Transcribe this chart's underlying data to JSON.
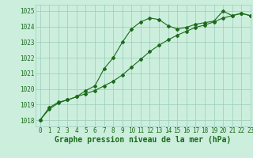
{
  "line1_x": [
    0,
    1,
    2,
    3,
    4,
    5,
    6,
    7,
    8,
    9,
    10,
    11,
    12,
    13,
    14,
    15,
    16,
    17,
    18,
    19,
    20,
    21,
    22,
    23
  ],
  "line1_y": [
    1018.0,
    1018.7,
    1019.1,
    1019.3,
    1019.5,
    1019.9,
    1020.2,
    1021.3,
    1022.0,
    1023.0,
    1023.85,
    1024.3,
    1024.55,
    1024.45,
    1024.05,
    1023.85,
    1023.95,
    1024.15,
    1024.25,
    1024.35,
    1025.0,
    1024.7,
    1024.85,
    1024.7
  ],
  "line2_x": [
    0,
    1,
    2,
    3,
    4,
    5,
    6,
    7,
    8,
    9,
    10,
    11,
    12,
    13,
    14,
    15,
    16,
    17,
    18,
    19,
    20,
    21,
    22,
    23
  ],
  "line2_y": [
    1018.0,
    1018.8,
    1019.15,
    1019.3,
    1019.5,
    1019.7,
    1019.9,
    1020.2,
    1020.5,
    1020.9,
    1021.4,
    1021.9,
    1022.4,
    1022.8,
    1023.15,
    1023.45,
    1023.7,
    1023.95,
    1024.1,
    1024.3,
    1024.55,
    1024.7,
    1024.85,
    1024.7
  ],
  "line_color": "#1a6b1a",
  "bg_color": "#cceedd",
  "grid_color": "#99ccbb",
  "xlim": [
    -0.5,
    23
  ],
  "ylim": [
    1017.6,
    1025.4
  ],
  "yticks": [
    1018,
    1019,
    1020,
    1021,
    1022,
    1023,
    1024,
    1025
  ],
  "xticks": [
    0,
    1,
    2,
    3,
    4,
    5,
    6,
    7,
    8,
    9,
    10,
    11,
    12,
    13,
    14,
    15,
    16,
    17,
    18,
    19,
    20,
    21,
    22,
    23
  ],
  "xlabel": "Graphe pression niveau de la mer (hPa)",
  "xlabel_fontsize": 7,
  "tick_fontsize": 5.5,
  "markersize": 2.0,
  "linewidth": 0.8
}
